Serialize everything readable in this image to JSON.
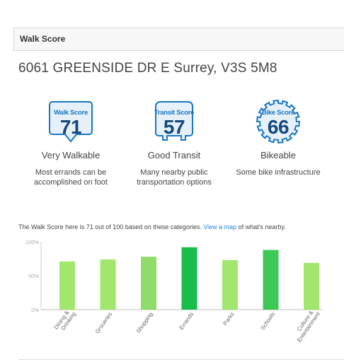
{
  "header": {
    "title": "Walk Score"
  },
  "address": "6061 GREENSIDE DR E Surrey, V3S 5M8",
  "scores": [
    {
      "label": "Walk Score",
      "value": "71",
      "description": "Very Walkable",
      "detail": "Most errands can be accomplished on foot",
      "icon": "walk-score-badge"
    },
    {
      "label": "Transit Score",
      "value": "57",
      "description": "Good Transit",
      "detail": "Many nearby public transportation options",
      "icon": "transit-score-badge"
    },
    {
      "label": "Bike Score",
      "value": "66",
      "description": "Bikeable",
      "detail": "Some bike infrastructure",
      "icon": "bike-score-badge"
    }
  ],
  "colors": {
    "badge_blue": "#1b77c4",
    "badge_dark": "#15497d",
    "badge_fill": "#e6f0f9",
    "link": "#2a86d6"
  },
  "caption": {
    "prefix": "The Walk Score here is 71 out of 100 based on these categories. ",
    "link_text": "View a map",
    "suffix": " of what's nearby."
  },
  "chart_data": {
    "type": "bar",
    "categories": [
      "Dining & Drinking",
      "Groceries",
      "Shopping",
      "Errands",
      "Parks",
      "Schools",
      "Culture & Entertainment"
    ],
    "values": [
      71,
      74,
      78,
      92,
      73,
      88,
      69
    ],
    "colors": [
      "#a2e66e",
      "#a2e66e",
      "#8fdc6b",
      "#18bd4a",
      "#a2e66e",
      "#3ec955",
      "#a2e66e"
    ],
    "ylim": [
      0,
      100
    ],
    "yticks": [
      "0%",
      "50%",
      "100%"
    ],
    "grid": false
  }
}
